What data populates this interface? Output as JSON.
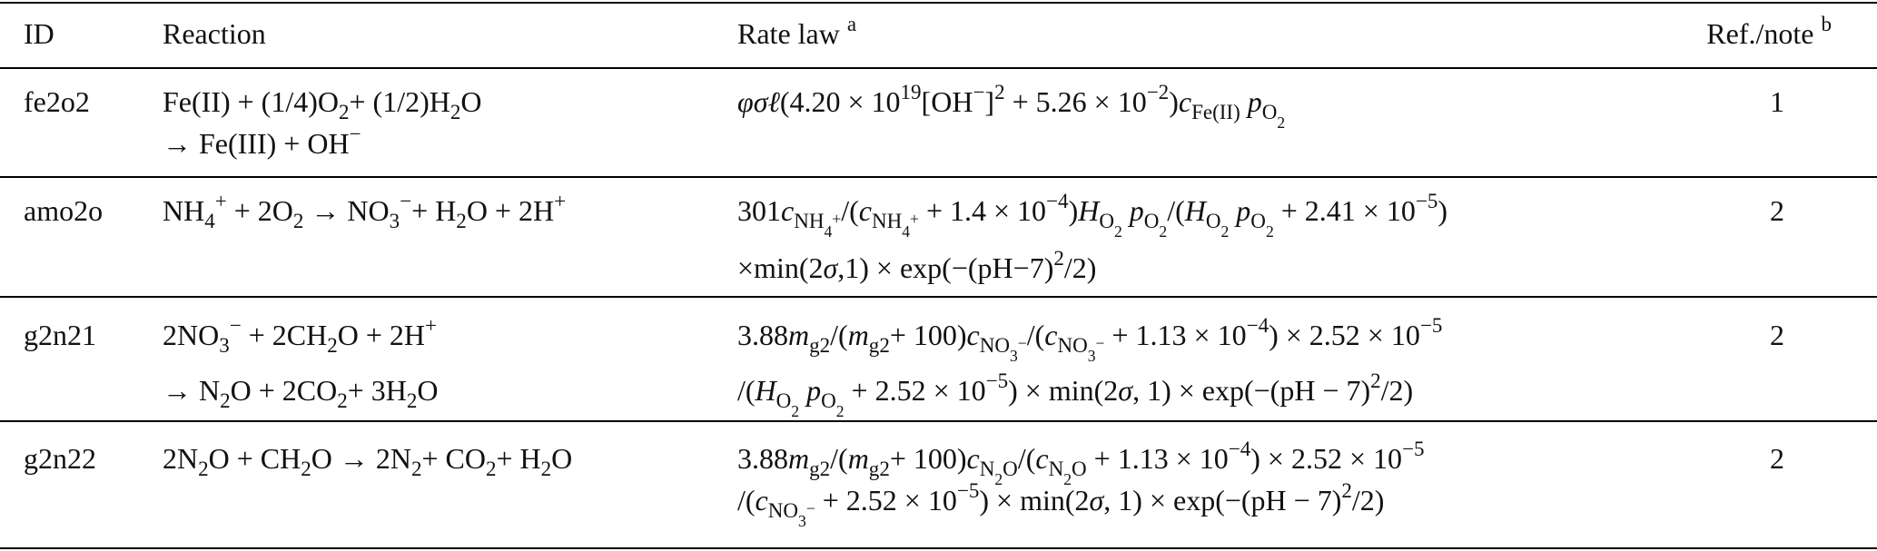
{
  "table": {
    "header": [
      [
        [
          "ID"
        ]
      ],
      [
        [
          "Reaction"
        ]
      ],
      [
        [
          "Rate law ",
          {
            "sup": "a"
          }
        ]
      ],
      [
        [
          "Ref./note ",
          {
            "sup": "b"
          }
        ]
      ]
    ],
    "rows": [
      [
        [
          [
            "fe2o2"
          ]
        ],
        [
          [
            "Fe(II) + (1/4)O",
            {
              "sub": "2"
            },
            "+ (1/2)H",
            {
              "sub": "2"
            },
            "O"
          ],
          [
            "→ Fe(III) + OH",
            {
              "sup": "−"
            }
          ]
        ],
        [
          [
            {
              "i": "φσℓ"
            },
            "(4.20 × 10",
            {
              "sup": "19"
            },
            "[OH",
            {
              "sup": "−"
            },
            "]",
            {
              "sup": "2"
            },
            " + 5.26 × 10",
            {
              "sup": "−2"
            },
            ")",
            {
              "i": "c"
            },
            {
              "sub": "Fe(II)"
            },
            " ",
            {
              "i": "p"
            },
            {
              "sub": "O"
            },
            {
              "ss": "2"
            }
          ]
        ],
        [
          [
            "1"
          ]
        ]
      ],
      [
        [
          [
            "amo2o"
          ]
        ],
        [
          [
            "NH",
            {
              "sub": "4"
            },
            {
              "sup": "+"
            },
            " + 2O",
            {
              "sub": "2"
            },
            " → NO",
            {
              "sub": "3"
            },
            {
              "sup": "−"
            },
            "+ H",
            {
              "sub": "2"
            },
            "O + 2H",
            {
              "sup": "+"
            }
          ]
        ],
        [
          [
            "301",
            {
              "i": "c"
            },
            {
              "sub": "NH"
            },
            {
              "ss": "4"
            },
            {
              "sp": "+"
            },
            "/(",
            {
              "i": "c"
            },
            {
              "sub": "NH"
            },
            {
              "ss": "4"
            },
            {
              "sp": "+"
            },
            " + 1.4 × 10",
            {
              "sup": "−4"
            },
            ")",
            {
              "i": "H"
            },
            {
              "sub": "O"
            },
            {
              "ss": "2"
            },
            " ",
            {
              "i": "p"
            },
            {
              "sub": "O"
            },
            {
              "ss": "2"
            },
            "/(",
            {
              "i": "H"
            },
            {
              "sub": "O"
            },
            {
              "ss": "2"
            },
            " ",
            {
              "i": "p"
            },
            {
              "sub": "O"
            },
            {
              "ss": "2"
            },
            " + 2.41 × 10",
            {
              "sup": "−5"
            },
            ")"
          ],
          [
            "×min(2",
            {
              "i": "σ"
            },
            ",1) × exp(−(pH−7)",
            {
              "sup": "2"
            },
            "/2)"
          ]
        ],
        [
          [
            "2"
          ]
        ]
      ],
      [
        [
          [
            "g2n21"
          ]
        ],
        [
          [
            "2NO",
            {
              "sub": "3"
            },
            {
              "sup": "−"
            },
            " + 2CH",
            {
              "sub": "2"
            },
            "O + 2H",
            {
              "sup": "+"
            }
          ],
          [
            "→ N",
            {
              "sub": "2"
            },
            "O + 2CO",
            {
              "sub": "2"
            },
            "+ 3H",
            {
              "sub": "2"
            },
            "O"
          ]
        ],
        [
          [
            "3.88",
            {
              "i": "m"
            },
            {
              "sub": "g2"
            },
            "/(",
            {
              "i": "m"
            },
            {
              "sub": "g2"
            },
            "+ 100)",
            {
              "i": "c"
            },
            {
              "sub": "NO"
            },
            {
              "ss": "3"
            },
            {
              "sp": "−"
            },
            "/(",
            {
              "i": "c"
            },
            {
              "sub": "NO"
            },
            {
              "ss": "3"
            },
            {
              "sp": "−"
            },
            " + 1.13 × 10",
            {
              "sup": "−4"
            },
            ") × 2.52 × 10",
            {
              "sup": "−5"
            }
          ],
          [
            "/(",
            {
              "i": "H"
            },
            {
              "sub": "O"
            },
            {
              "ss": "2"
            },
            " ",
            {
              "i": "p"
            },
            {
              "sub": "O"
            },
            {
              "ss": "2"
            },
            " + 2.52 × 10",
            {
              "sup": "−5"
            },
            ") × min(2",
            {
              "i": "σ"
            },
            ", 1) × exp(−(pH − 7)",
            {
              "sup": "2"
            },
            "/2)"
          ]
        ],
        [
          [
            "2"
          ]
        ]
      ],
      [
        [
          [
            "g2n22"
          ]
        ],
        [
          [
            "2N",
            {
              "sub": "2"
            },
            "O + CH",
            {
              "sub": "2"
            },
            "O → 2N",
            {
              "sub": "2"
            },
            "+ CO",
            {
              "sub": "2"
            },
            "+ H",
            {
              "sub": "2"
            },
            "O"
          ]
        ],
        [
          [
            "3.88",
            {
              "i": "m"
            },
            {
              "sub": "g2"
            },
            "/(",
            {
              "i": "m"
            },
            {
              "sub": "g2"
            },
            "+ 100)",
            {
              "i": "c"
            },
            {
              "sub": "N"
            },
            {
              "ss": "2"
            },
            {
              "sub": "O"
            },
            "/(",
            {
              "i": "c"
            },
            {
              "sub": "N"
            },
            {
              "ss": "2"
            },
            {
              "sub": "O"
            },
            " + 1.13 × 10",
            {
              "sup": "−4"
            },
            ") × 2.52 × 10",
            {
              "sup": "−5"
            }
          ],
          [
            "/(",
            {
              "i": "c"
            },
            {
              "sub": "NO"
            },
            {
              "ss": "3"
            },
            {
              "sp": "−"
            },
            " + 2.52 × 10",
            {
              "sup": "−5"
            },
            ") × min(2",
            {
              "i": "σ"
            },
            ", 1) × exp(−(pH − 7)",
            {
              "sup": "2"
            },
            "/2)"
          ]
        ],
        [
          [
            "2"
          ]
        ]
      ]
    ]
  }
}
